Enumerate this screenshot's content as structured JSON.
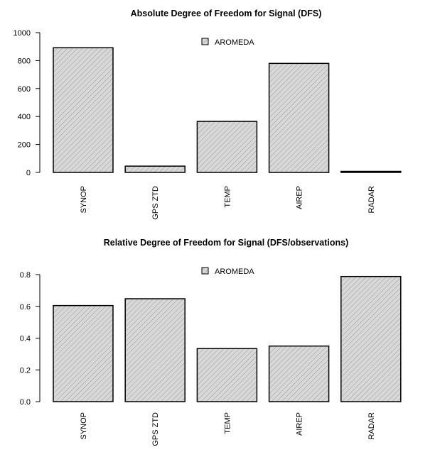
{
  "chart_data": [
    {
      "type": "bar",
      "title": "Absolute Degree of Freedom for Signal (DFS)",
      "xlabel": "",
      "ylabel": "",
      "categories": [
        "SYNOP",
        "GPS ZTD",
        "TEMP",
        "AIREP",
        "RADAR"
      ],
      "series": [
        {
          "name": "AROMEDA",
          "values": [
            892,
            45,
            365,
            780,
            3
          ]
        }
      ],
      "ylim": [
        0,
        1000
      ],
      "yticks": [
        0,
        200,
        400,
        600,
        800,
        1000
      ],
      "ytick_labels": [
        "0",
        "200",
        "400",
        "600",
        "800",
        "1000"
      ],
      "grid": false,
      "legend_position": "top-center",
      "bar_fill": "#d8d8d8",
      "hatch_color": "#9a9a9a",
      "bar_edge": "#000000"
    },
    {
      "type": "bar",
      "title": "Relative Degree of Freedom for Signal (DFS/observations)",
      "xlabel": "",
      "ylabel": "",
      "categories": [
        "SYNOP",
        "GPS ZTD",
        "TEMP",
        "AIREP",
        "RADAR"
      ],
      "series": [
        {
          "name": "AROMEDA",
          "values": [
            0.605,
            0.648,
            0.334,
            0.35,
            0.788
          ]
        }
      ],
      "ylim": [
        0,
        0.8
      ],
      "yticks": [
        0,
        0.2,
        0.4,
        0.6,
        0.8
      ],
      "ytick_labels": [
        "0.0",
        "0.2",
        "0.4",
        "0.6",
        "0.8"
      ],
      "grid": false,
      "legend_position": "top-center",
      "bar_fill": "#d8d8d8",
      "hatch_color": "#9a9a9a",
      "bar_edge": "#000000"
    }
  ]
}
